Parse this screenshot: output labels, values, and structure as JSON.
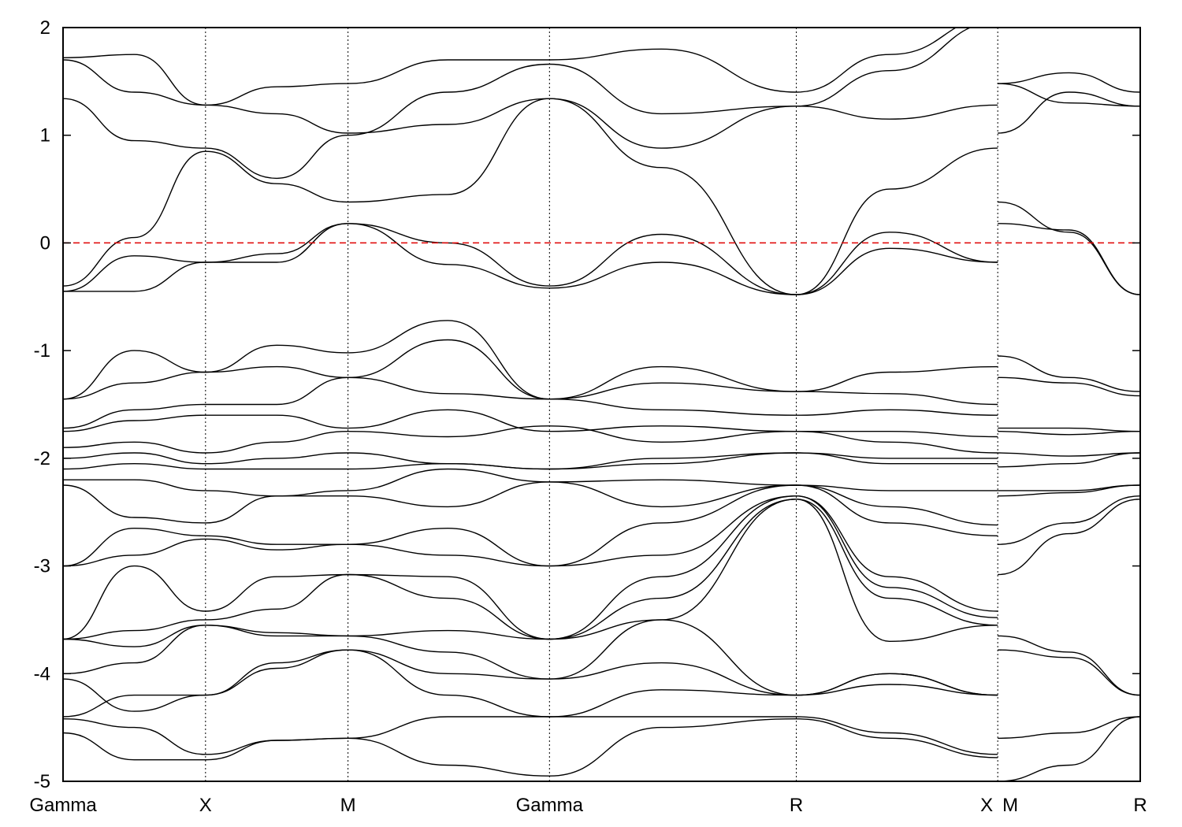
{
  "chart_data": {
    "type": "line",
    "title": "",
    "xlabel": "",
    "ylabel": "",
    "ylim": [
      -5,
      2
    ],
    "yticks": [
      2,
      1,
      0,
      -1,
      -2,
      -3,
      -4,
      -5
    ],
    "x_segments": [
      {
        "from": 0.0,
        "to": 1.0
      },
      {
        "from": 1.0,
        "to": 2.0
      },
      {
        "from": 2.0,
        "to": 3.414
      },
      {
        "from": 3.414,
        "to": 5.146
      },
      {
        "from": 5.146,
        "to": 6.56
      },
      {
        "from": 6.56,
        "to": 7.56
      }
    ],
    "kpoints": [
      {
        "label": "Gamma",
        "x": 0.0
      },
      {
        "label": "X",
        "x": 1.0
      },
      {
        "label": "M",
        "x": 2.0
      },
      {
        "label": "Gamma",
        "x": 3.414
      },
      {
        "label": "R",
        "x": 5.146
      },
      {
        "label": "X",
        "x": 6.56
      },
      {
        "label": "M",
        "x": 6.56
      },
      {
        "label": "R",
        "x": 7.56
      }
    ],
    "path_break": 6.56,
    "fermi_level": 0,
    "fermi_color": "#e00000",
    "band_color": "#000000",
    "grid": false,
    "series": [
      {
        "x": [
          0,
          0.5,
          1,
          1.5,
          2,
          2.7,
          3.414,
          4.2,
          5.146,
          5.8,
          6.56
        ],
        "values": [
          -0.4,
          0.05,
          0.85,
          0.55,
          0.38,
          0.45,
          1.34,
          0.7,
          -0.48,
          0.5,
          0.88
        ]
      },
      {
        "x": [
          0,
          0.5,
          1,
          1.5,
          2,
          2.7,
          3.414,
          4.2,
          5.146,
          5.8,
          6.56
        ],
        "values": [
          -0.45,
          -0.12,
          -0.18,
          -0.1,
          0.18,
          0.0,
          -0.4,
          0.08,
          -0.48,
          -0.05,
          -0.18
        ]
      },
      {
        "x": [
          0,
          0.5,
          1,
          1.5,
          2,
          2.7,
          3.414,
          4.2,
          5.146,
          5.8,
          6.56
        ],
        "values": [
          -0.45,
          -0.45,
          -0.18,
          -0.18,
          0.18,
          -0.2,
          -0.42,
          -0.18,
          -0.48,
          0.1,
          -0.18
        ]
      },
      {
        "x": [
          0,
          0.5,
          1,
          1.5,
          2,
          2.7,
          3.414,
          4.2,
          5.146,
          5.8,
          6.56
        ],
        "values": [
          1.34,
          0.95,
          0.88,
          0.6,
          1.0,
          1.4,
          1.66,
          1.2,
          1.27,
          1.15,
          1.28
        ]
      },
      {
        "x": [
          0,
          0.5,
          1,
          1.5,
          2,
          2.7,
          3.414,
          4.2,
          5.146,
          5.8,
          6.56
        ],
        "values": [
          1.7,
          1.4,
          1.28,
          1.2,
          1.02,
          1.1,
          1.34,
          0.88,
          1.27,
          1.6,
          2.05
        ]
      },
      {
        "x": [
          0,
          0.5,
          1,
          1.5,
          2,
          2.7,
          3.414,
          4.2,
          5.146,
          5.8,
          6.56
        ],
        "values": [
          1.72,
          1.75,
          1.28,
          1.45,
          1.48,
          1.7,
          1.7,
          1.8,
          1.4,
          1.75,
          2.1
        ]
      },
      {
        "x": [
          0,
          0.5,
          1,
          1.5,
          2,
          2.7,
          3.414,
          4.2,
          5.146,
          5.8,
          6.56
        ],
        "values": [
          -1.45,
          -1.0,
          -1.2,
          -0.95,
          -1.02,
          -0.72,
          -1.45,
          -1.15,
          -1.38,
          -1.2,
          -1.15
        ]
      },
      {
        "x": [
          0,
          0.5,
          1,
          1.5,
          2,
          2.7,
          3.414,
          4.2,
          5.146,
          5.8,
          6.56
        ],
        "values": [
          -1.45,
          -1.3,
          -1.2,
          -1.15,
          -1.25,
          -0.9,
          -1.45,
          -1.3,
          -1.38,
          -1.4,
          -1.5
        ]
      },
      {
        "x": [
          0,
          0.5,
          1,
          1.5,
          2,
          2.7,
          3.414,
          4.2,
          5.146,
          5.8,
          6.56
        ],
        "values": [
          -1.72,
          -1.55,
          -1.5,
          -1.5,
          -1.25,
          -1.4,
          -1.45,
          -1.55,
          -1.6,
          -1.55,
          -1.6
        ]
      },
      {
        "x": [
          0,
          0.5,
          1,
          1.5,
          2,
          2.7,
          3.414,
          4.2,
          5.146,
          5.8,
          6.56
        ],
        "values": [
          -1.75,
          -1.65,
          -1.6,
          -1.6,
          -1.72,
          -1.55,
          -1.75,
          -1.7,
          -1.75,
          -1.75,
          -1.8
        ]
      },
      {
        "x": [
          0,
          0.5,
          1,
          1.5,
          2,
          2.7,
          3.414,
          4.2,
          5.146,
          5.8,
          6.56
        ],
        "values": [
          -1.9,
          -1.85,
          -1.95,
          -1.85,
          -1.75,
          -1.8,
          -1.7,
          -1.85,
          -1.75,
          -1.85,
          -1.95
        ]
      },
      {
        "x": [
          0,
          0.5,
          1,
          1.5,
          2,
          2.7,
          3.414,
          4.2,
          5.146,
          5.8,
          6.56
        ],
        "values": [
          -2.0,
          -1.95,
          -2.05,
          -2.0,
          -1.95,
          -2.05,
          -2.1,
          -2.0,
          -1.95,
          -2.0,
          -2.0
        ]
      },
      {
        "x": [
          0,
          0.5,
          1,
          1.5,
          2,
          2.7,
          3.414,
          4.2,
          5.146,
          5.8,
          6.56
        ],
        "values": [
          -2.1,
          -2.05,
          -2.1,
          -2.1,
          -2.1,
          -2.05,
          -2.1,
          -2.05,
          -1.95,
          -2.05,
          -2.05
        ]
      },
      {
        "x": [
          0,
          0.5,
          1,
          1.5,
          2,
          2.7,
          3.414,
          4.2,
          5.146,
          5.8,
          6.56
        ],
        "values": [
          -2.2,
          -2.2,
          -2.3,
          -2.35,
          -2.3,
          -2.1,
          -2.22,
          -2.2,
          -2.25,
          -2.3,
          -2.3
        ]
      },
      {
        "x": [
          0,
          0.5,
          1,
          1.5,
          2,
          2.7,
          3.414,
          4.2,
          5.146,
          5.8,
          6.56
        ],
        "values": [
          -2.25,
          -2.55,
          -2.6,
          -2.35,
          -2.35,
          -2.45,
          -2.22,
          -2.45,
          -2.25,
          -2.45,
          -2.62
        ]
      },
      {
        "x": [
          0,
          0.5,
          1,
          1.5,
          2,
          2.7,
          3.414,
          4.2,
          5.146,
          5.8,
          6.56
        ],
        "values": [
          -3.0,
          -2.65,
          -2.72,
          -2.8,
          -2.8,
          -2.65,
          -3.0,
          -2.6,
          -2.25,
          -2.6,
          -2.72
        ]
      },
      {
        "x": [
          0,
          0.5,
          1,
          1.5,
          2,
          2.7,
          3.414,
          4.2,
          5.146,
          5.8,
          6.56
        ],
        "values": [
          -3.0,
          -2.9,
          -2.75,
          -2.85,
          -2.8,
          -2.9,
          -3.0,
          -2.9,
          -2.35,
          -3.1,
          -3.42
        ]
      },
      {
        "x": [
          0,
          0.5,
          1,
          1.5,
          2,
          2.7,
          3.414,
          4.2,
          5.146,
          5.8,
          6.56
        ],
        "values": [
          -3.68,
          -3.0,
          -3.42,
          -3.1,
          -3.08,
          -3.3,
          -3.68,
          -3.1,
          -2.35,
          -3.2,
          -3.48
        ]
      },
      {
        "x": [
          0,
          0.5,
          1,
          1.5,
          2,
          2.7,
          3.414,
          4.2,
          5.146,
          5.8,
          6.56
        ],
        "values": [
          -3.68,
          -3.6,
          -3.5,
          -3.4,
          -3.08,
          -3.1,
          -3.68,
          -3.3,
          -2.38,
          -3.3,
          -3.55
        ]
      },
      {
        "x": [
          0,
          0.5,
          1,
          1.5,
          2,
          2.7,
          3.414,
          4.2,
          5.146,
          5.8,
          6.56
        ],
        "values": [
          -3.68,
          -3.75,
          -3.55,
          -3.62,
          -3.65,
          -3.6,
          -3.68,
          -3.5,
          -2.38,
          -3.7,
          -3.55
        ]
      },
      {
        "x": [
          0,
          0.5,
          1,
          1.5,
          2,
          2.7,
          3.414,
          4.2,
          5.146,
          5.8,
          6.56
        ],
        "values": [
          -4.0,
          -3.9,
          -3.55,
          -3.65,
          -3.65,
          -3.8,
          -4.05,
          -3.5,
          -4.2,
          -4.0,
          -4.2
        ]
      },
      {
        "x": [
          0,
          0.5,
          1,
          1.5,
          2,
          2.7,
          3.414,
          4.2,
          5.146,
          5.8,
          6.56
        ],
        "values": [
          -4.05,
          -4.35,
          -4.2,
          -3.9,
          -3.78,
          -4.0,
          -4.05,
          -3.9,
          -4.2,
          -4.0,
          -4.2
        ]
      },
      {
        "x": [
          0,
          0.5,
          1,
          1.5,
          2,
          2.7,
          3.414,
          4.2,
          5.146,
          5.8,
          6.56
        ],
        "values": [
          -4.4,
          -4.2,
          -4.2,
          -3.95,
          -3.78,
          -4.2,
          -4.4,
          -4.15,
          -4.2,
          -4.1,
          -4.2
        ]
      },
      {
        "x": [
          0,
          0.5,
          1,
          1.5,
          2,
          2.7,
          3.414,
          4.2,
          5.146,
          5.8,
          6.56
        ],
        "values": [
          -4.42,
          -4.5,
          -4.75,
          -4.62,
          -4.6,
          -4.4,
          -4.4,
          -4.4,
          -4.4,
          -4.55,
          -4.75
        ]
      },
      {
        "x": [
          0,
          0.5,
          1,
          1.5,
          2,
          2.7,
          3.414,
          4.2,
          5.146,
          5.8,
          6.56
        ],
        "values": [
          -4.55,
          -4.8,
          -4.8,
          -4.62,
          -4.6,
          -4.85,
          -4.95,
          -4.5,
          -4.42,
          -4.6,
          -4.78
        ]
      },
      {
        "x": [
          6.56,
          7.06,
          7.56
        ],
        "values": [
          0.38,
          0.1,
          -0.48
        ]
      },
      {
        "x": [
          6.56,
          7.06,
          7.56
        ],
        "values": [
          0.18,
          0.12,
          -0.48
        ]
      },
      {
        "x": [
          6.56,
          7.06,
          7.56
        ],
        "values": [
          1.02,
          1.4,
          1.27
        ]
      },
      {
        "x": [
          6.56,
          7.06,
          7.56
        ],
        "values": [
          1.48,
          1.58,
          1.4
        ]
      },
      {
        "x": [
          6.56,
          7.06,
          7.56
        ],
        "values": [
          1.48,
          1.3,
          1.27
        ]
      },
      {
        "x": [
          6.56,
          7.06,
          7.56
        ],
        "values": [
          -1.05,
          -1.25,
          -1.38
        ]
      },
      {
        "x": [
          6.56,
          7.06,
          7.56
        ],
        "values": [
          -1.25,
          -1.3,
          -1.42
        ]
      },
      {
        "x": [
          6.56,
          7.06,
          7.56
        ],
        "values": [
          -1.72,
          -1.72,
          -1.75
        ]
      },
      {
        "x": [
          6.56,
          7.06,
          7.56
        ],
        "values": [
          -1.75,
          -1.78,
          -1.75
        ]
      },
      {
        "x": [
          6.56,
          7.06,
          7.56
        ],
        "values": [
          -1.95,
          -1.98,
          -1.95
        ]
      },
      {
        "x": [
          6.56,
          7.06,
          7.56
        ],
        "values": [
          -2.08,
          -2.05,
          -1.95
        ]
      },
      {
        "x": [
          6.56,
          7.06,
          7.56
        ],
        "values": [
          -2.3,
          -2.3,
          -2.25
        ]
      },
      {
        "x": [
          6.56,
          7.06,
          7.56
        ],
        "values": [
          -2.35,
          -2.32,
          -2.25
        ]
      },
      {
        "x": [
          6.56,
          7.06,
          7.56
        ],
        "values": [
          -2.8,
          -2.6,
          -2.35
        ]
      },
      {
        "x": [
          6.56,
          7.06,
          7.56
        ],
        "values": [
          -3.08,
          -2.7,
          -2.38
        ]
      },
      {
        "x": [
          6.56,
          7.06,
          7.56
        ],
        "values": [
          -3.65,
          -3.8,
          -4.2
        ]
      },
      {
        "x": [
          6.56,
          7.06,
          7.56
        ],
        "values": [
          -3.78,
          -3.85,
          -4.2
        ]
      },
      {
        "x": [
          6.56,
          7.06,
          7.56
        ],
        "values": [
          -4.6,
          -4.55,
          -4.4
        ]
      },
      {
        "x": [
          6.56,
          7.06,
          7.56
        ],
        "values": [
          -5.0,
          -4.85,
          -4.4
        ]
      }
    ]
  }
}
